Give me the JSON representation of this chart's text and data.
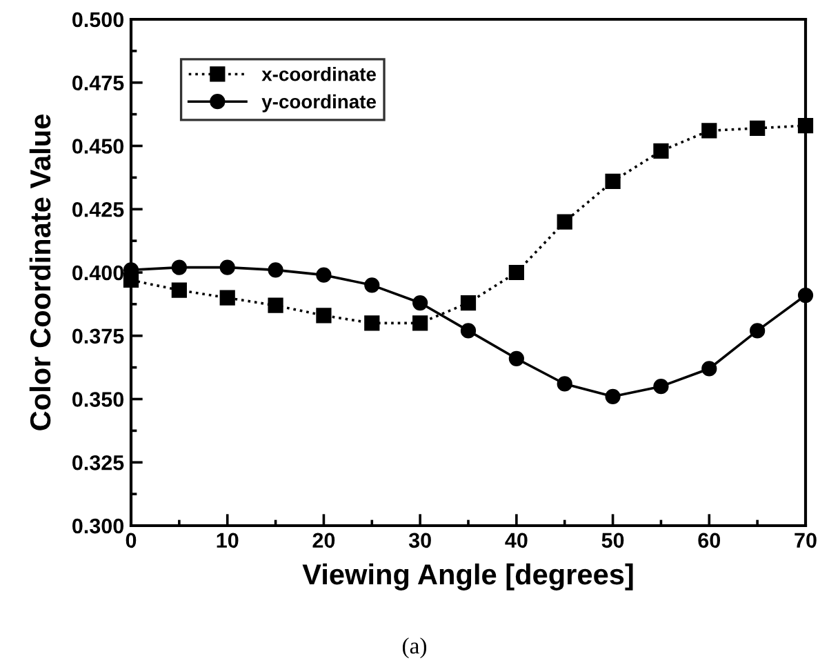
{
  "chart_data": {
    "type": "line",
    "xlabel": "Viewing Angle [degrees]",
    "ylabel": "Color Coordinate Value",
    "x": [
      0,
      5,
      10,
      15,
      20,
      25,
      30,
      35,
      40,
      45,
      50,
      55,
      60,
      65,
      70
    ],
    "series": [
      {
        "name": "x-coordinate",
        "color": "#000000",
        "marker": "square",
        "line_style": "dotted",
        "values": [
          0.397,
          0.393,
          0.39,
          0.387,
          0.383,
          0.38,
          0.38,
          0.388,
          0.4,
          0.42,
          0.436,
          0.448,
          0.456,
          0.457,
          0.458
        ]
      },
      {
        "name": "y-coordinate",
        "color": "#000000",
        "marker": "circle",
        "line_style": "solid",
        "values": [
          0.401,
          0.402,
          0.402,
          0.401,
          0.399,
          0.395,
          0.388,
          0.377,
          0.366,
          0.356,
          0.351,
          0.355,
          0.362,
          0.377,
          0.391
        ]
      }
    ],
    "xlim": [
      0,
      70
    ],
    "xticks": [
      0,
      10,
      20,
      30,
      40,
      50,
      60,
      70
    ],
    "ylim": [
      0.3,
      0.5
    ],
    "yticks": [
      {
        "value": 0.3,
        "label": "0.300"
      },
      {
        "value": 0.325,
        "label": "0.325"
      },
      {
        "value": 0.35,
        "label": "0.350"
      },
      {
        "value": 0.375,
        "label": "0.375"
      },
      {
        "value": 0.4,
        "label": "0.400"
      },
      {
        "value": 0.425,
        "label": "0.425"
      },
      {
        "value": 0.45,
        "label": "0.450"
      },
      {
        "value": 0.475,
        "label": "0.475"
      },
      {
        "value": 0.5,
        "label": "0.500"
      }
    ],
    "grid": false,
    "legend": "top left",
    "annotations": [
      "(a)"
    ]
  }
}
